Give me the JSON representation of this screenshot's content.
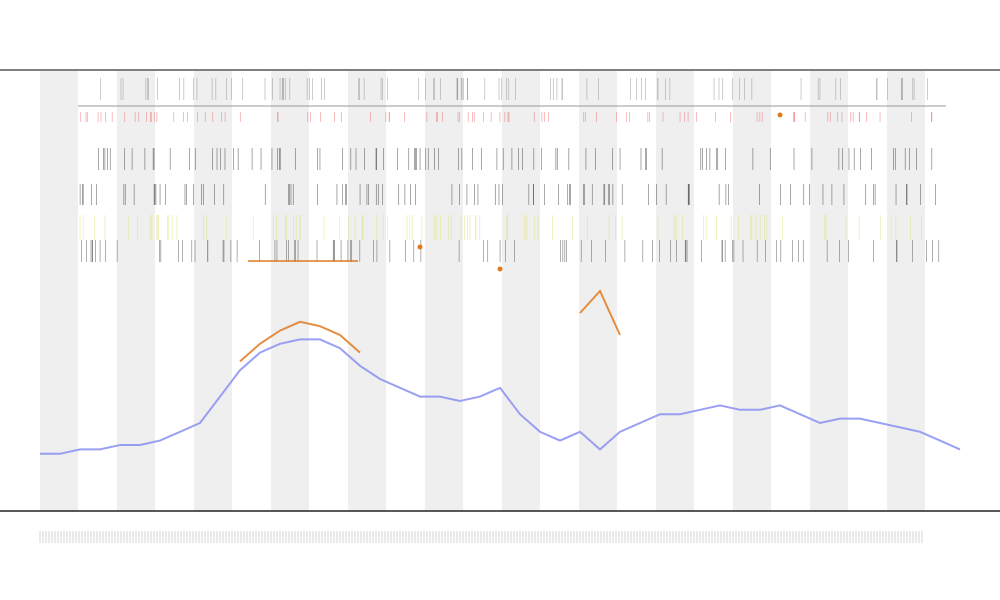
{
  "chart_data": {
    "type": "line",
    "x": [
      0,
      1,
      2,
      3,
      4,
      5,
      6,
      7,
      8,
      9,
      10,
      11,
      12,
      13,
      14,
      15,
      16,
      17,
      18,
      19,
      20,
      21,
      22,
      23,
      24,
      25,
      26,
      27,
      28,
      29,
      30,
      31,
      32,
      33,
      34,
      35,
      36,
      37,
      38,
      39,
      40,
      41,
      42,
      43,
      44,
      45,
      46
    ],
    "xlim": [
      0,
      46
    ],
    "ylim": [
      0,
      100
    ],
    "series": [
      {
        "color": "#8a8ff0",
        "values": [
          13,
          13,
          14,
          14,
          15,
          15,
          16,
          18,
          20,
          26,
          32,
          36,
          38,
          39,
          39,
          37,
          33,
          30,
          28,
          26,
          26,
          25,
          26,
          28,
          22,
          18,
          16,
          18,
          14,
          18,
          20,
          22,
          22,
          23,
          24,
          23,
          23,
          24,
          22,
          20,
          21,
          21,
          20,
          19,
          18,
          16,
          14
        ]
      },
      {
        "color": "#e07a1f",
        "values": [
          null,
          null,
          null,
          null,
          null,
          null,
          null,
          null,
          null,
          null,
          34,
          38,
          41,
          43,
          42,
          40,
          36,
          null,
          null,
          60,
          null,
          null,
          null,
          55,
          null,
          null,
          null,
          45,
          50,
          40,
          null,
          null,
          null,
          null,
          null,
          null,
          null,
          90,
          null,
          null,
          null,
          null,
          null,
          null,
          null,
          null,
          null
        ]
      }
    ]
  }
}
